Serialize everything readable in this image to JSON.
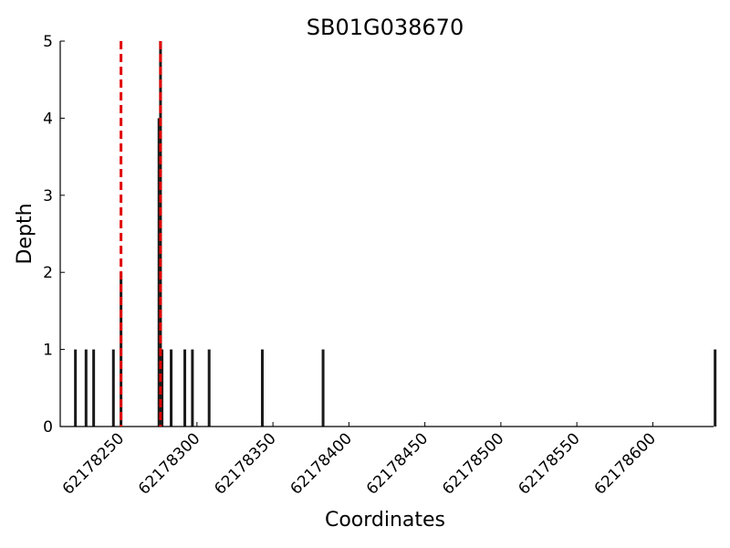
{
  "chart_data": {
    "type": "bar",
    "title": "SB01G038670",
    "xlabel": "Coordinates",
    "ylabel": "Depth",
    "xlim": [
      62178210,
      62178640
    ],
    "ylim": [
      0,
      5
    ],
    "x_ticks": [
      62178250,
      62178300,
      62178350,
      62178400,
      62178450,
      62178500,
      62178550,
      62178600
    ],
    "y_ticks": [
      0,
      1,
      2,
      3,
      4,
      5
    ],
    "grid": false,
    "bar_color": "#1a1a1a",
    "series": [
      {
        "x": [
          62178220,
          62178227,
          62178232,
          62178245,
          62178250,
          62178275,
          62178276,
          62178277,
          62178283,
          62178292,
          62178297,
          62178308,
          62178343,
          62178383,
          62178641
        ],
        "y": [
          1,
          1,
          1,
          1,
          2,
          4,
          5,
          1,
          1,
          1,
          1,
          1,
          1,
          1,
          1
        ]
      }
    ],
    "reference_lines": {
      "color": "#e00000",
      "style": "dashed",
      "x": [
        62178250,
        62178276
      ]
    }
  }
}
